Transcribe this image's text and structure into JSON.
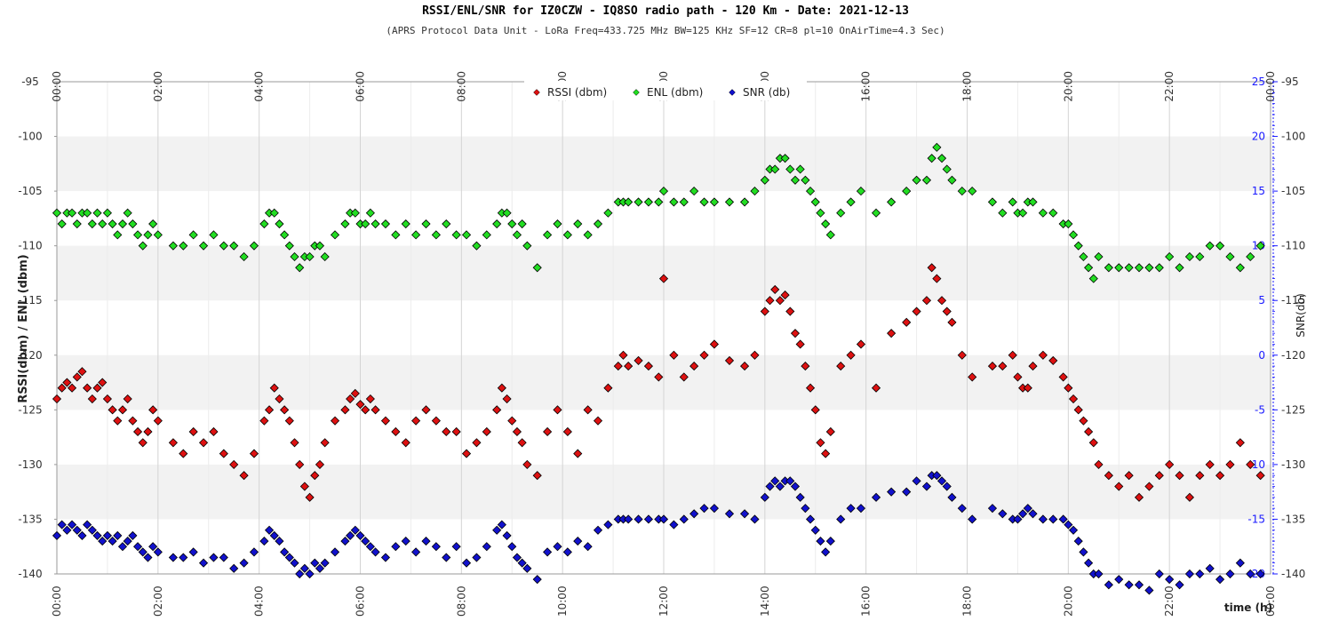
{
  "chart_data": {
    "type": "scatter",
    "title": "RSSI/ENL/SNR for IZ0CZW - IQ8SO radio path - 120 Km - Date: 2021-12-13",
    "subtitle": "(APRS Protocol Data Unit - LoRa Freq=433.725 MHz BW=125 KHz SF=12 CR=8 pl=10 OnAirTime=4.3 Sec)",
    "xlabel": "time (h)",
    "ylabel_left": "RSSI(dbm) / ENL (dbm)",
    "ylabel_right": "SNR(db)",
    "xlim": [
      0,
      24
    ],
    "ylim_left": [
      -140,
      -95
    ],
    "ylim_right": [
      -20,
      25
    ],
    "x_ticks": [
      "00:00",
      "02:00",
      "04:00",
      "06:00",
      "08:00",
      "10:00",
      "12:00",
      "14:00",
      "16:00",
      "18:00",
      "20:00",
      "22:00",
      "00:00"
    ],
    "y_ticks_left": [
      "-95",
      "-100",
      "-105",
      "-110",
      "-115",
      "-120",
      "-125",
      "-130",
      "-135",
      "-140"
    ],
    "y_ticks_right": [
      "25",
      "20",
      "15",
      "10",
      "5",
      "0",
      "-5",
      "-10",
      "-15",
      "-20"
    ],
    "grid": true,
    "legend_position": "top-center",
    "colors": {
      "rssi": "#dd1111",
      "enl": "#22dd22",
      "snr": "#1111cc",
      "right_axis": "#1a1aff",
      "band": "#f2f2f2"
    },
    "series": [
      {
        "name": "RSSI (dbm)",
        "axis": "left",
        "color": "#dd1111",
        "x": [
          0.0,
          0.1,
          0.2,
          0.3,
          0.4,
          0.5,
          0.6,
          0.7,
          0.8,
          0.9,
          1.0,
          1.1,
          1.2,
          1.3,
          1.4,
          1.5,
          1.6,
          1.7,
          1.8,
          1.9,
          2.0,
          2.3,
          2.5,
          2.7,
          2.9,
          3.1,
          3.3,
          3.5,
          3.7,
          3.9,
          4.1,
          4.2,
          4.3,
          4.4,
          4.5,
          4.6,
          4.7,
          4.8,
          4.9,
          5.0,
          5.1,
          5.2,
          5.3,
          5.5,
          5.7,
          5.8,
          5.9,
          6.0,
          6.1,
          6.2,
          6.3,
          6.5,
          6.7,
          6.9,
          7.1,
          7.3,
          7.5,
          7.7,
          7.9,
          8.1,
          8.3,
          8.5,
          8.7,
          8.8,
          8.9,
          9.0,
          9.1,
          9.2,
          9.3,
          9.5,
          9.7,
          9.9,
          10.1,
          10.3,
          10.5,
          10.7,
          10.9,
          11.1,
          11.2,
          11.3,
          11.5,
          11.7,
          11.9,
          12.0,
          12.2,
          12.4,
          12.6,
          12.8,
          13.0,
          13.3,
          13.6,
          13.8,
          14.0,
          14.1,
          14.2,
          14.3,
          14.4,
          14.5,
          14.6,
          14.7,
          14.8,
          14.9,
          15.0,
          15.1,
          15.2,
          15.3,
          15.5,
          15.7,
          15.9,
          16.2,
          16.5,
          16.8,
          17.0,
          17.2,
          17.3,
          17.4,
          17.5,
          17.6,
          17.7,
          17.9,
          18.1,
          18.5,
          18.7,
          18.9,
          19.0,
          19.1,
          19.2,
          19.3,
          19.5,
          19.7,
          19.9,
          20.0,
          20.1,
          20.2,
          20.3,
          20.4,
          20.5,
          20.6,
          20.8,
          21.0,
          21.2,
          21.4,
          21.6,
          21.8,
          22.0,
          22.2,
          22.4,
          22.6,
          22.8,
          23.0,
          23.2,
          23.4,
          23.6,
          23.8
        ],
        "y": [
          -124,
          -123,
          -122.5,
          -123,
          -122,
          -121.5,
          -123,
          -124,
          -123,
          -122.5,
          -124,
          -125,
          -126,
          -125,
          -124,
          -126,
          -127,
          -128,
          -127,
          -125,
          -126,
          -128,
          -129,
          -127,
          -128,
          -127,
          -129,
          -130,
          -131,
          -129,
          -126,
          -125,
          -123,
          -124,
          -125,
          -126,
          -128,
          -130,
          -132,
          -133,
          -131,
          -130,
          -128,
          -126,
          -125,
          -124,
          -123.5,
          -124.5,
          -125,
          -124,
          -125,
          -126,
          -127,
          -128,
          -126,
          -125,
          -126,
          -127,
          -127,
          -129,
          -128,
          -127,
          -125,
          -123,
          -124,
          -126,
          -127,
          -128,
          -130,
          -131,
          -127,
          -125,
          -127,
          -129,
          -125,
          -126,
          -123,
          -121,
          -120,
          -121,
          -120.5,
          -121,
          -122,
          -113,
          -120,
          -122,
          -121,
          -120,
          -119,
          -120.5,
          -121,
          -120,
          -116,
          -115,
          -114,
          -115,
          -114.5,
          -116,
          -118,
          -119,
          -121,
          -123,
          -125,
          -128,
          -129,
          -127,
          -121,
          -120,
          -119,
          -123,
          -118,
          -117,
          -116,
          -115,
          -112,
          -113,
          -115,
          -116,
          -117,
          -120,
          -122,
          -121,
          -121,
          -120,
          -122,
          -123,
          -123,
          -121,
          -120,
          -120.5,
          -122,
          -123,
          -124,
          -125,
          -126,
          -127,
          -128,
          -130,
          -131,
          -132,
          -131,
          -133,
          -132,
          -131,
          -130,
          -131,
          -133,
          -131,
          -130,
          -131,
          -130,
          -128,
          -130,
          -131
        ]
      },
      {
        "name": "ENL (dbm)",
        "axis": "left",
        "color": "#22dd22",
        "x": [
          0.0,
          0.1,
          0.2,
          0.3,
          0.4,
          0.5,
          0.6,
          0.7,
          0.8,
          0.9,
          1.0,
          1.1,
          1.2,
          1.3,
          1.4,
          1.5,
          1.6,
          1.7,
          1.8,
          1.9,
          2.0,
          2.3,
          2.5,
          2.7,
          2.9,
          3.1,
          3.3,
          3.5,
          3.7,
          3.9,
          4.1,
          4.2,
          4.3,
          4.4,
          4.5,
          4.6,
          4.7,
          4.8,
          4.9,
          5.0,
          5.1,
          5.2,
          5.3,
          5.5,
          5.7,
          5.8,
          5.9,
          6.0,
          6.1,
          6.2,
          6.3,
          6.5,
          6.7,
          6.9,
          7.1,
          7.3,
          7.5,
          7.7,
          7.9,
          8.1,
          8.3,
          8.5,
          8.7,
          8.8,
          8.9,
          9.0,
          9.1,
          9.2,
          9.3,
          9.5,
          9.7,
          9.9,
          10.1,
          10.3,
          10.5,
          10.7,
          10.9,
          11.1,
          11.2,
          11.3,
          11.5,
          11.7,
          11.9,
          12.0,
          12.2,
          12.4,
          12.6,
          12.8,
          13.0,
          13.3,
          13.6,
          13.8,
          14.0,
          14.1,
          14.2,
          14.3,
          14.4,
          14.5,
          14.6,
          14.7,
          14.8,
          14.9,
          15.0,
          15.1,
          15.2,
          15.3,
          15.5,
          15.7,
          15.9,
          16.2,
          16.5,
          16.8,
          17.0,
          17.2,
          17.3,
          17.4,
          17.5,
          17.6,
          17.7,
          17.9,
          18.1,
          18.5,
          18.7,
          18.9,
          19.0,
          19.1,
          19.2,
          19.3,
          19.5,
          19.7,
          19.9,
          20.0,
          20.1,
          20.2,
          20.3,
          20.4,
          20.5,
          20.6,
          20.8,
          21.0,
          21.2,
          21.4,
          21.6,
          21.8,
          22.0,
          22.2,
          22.4,
          22.6,
          22.8,
          23.0,
          23.2,
          23.4,
          23.6,
          23.8
        ],
        "y": [
          -107,
          -108,
          -107,
          -107,
          -108,
          -107,
          -107,
          -108,
          -107,
          -108,
          -107,
          -108,
          -109,
          -108,
          -107,
          -108,
          -109,
          -110,
          -109,
          -108,
          -109,
          -110,
          -110,
          -109,
          -110,
          -109,
          -110,
          -110,
          -111,
          -110,
          -108,
          -107,
          -107,
          -108,
          -109,
          -110,
          -111,
          -112,
          -111,
          -111,
          -110,
          -110,
          -111,
          -109,
          -108,
          -107,
          -107,
          -108,
          -108,
          -107,
          -108,
          -108,
          -109,
          -108,
          -109,
          -108,
          -109,
          -108,
          -109,
          -109,
          -110,
          -109,
          -108,
          -107,
          -107,
          -108,
          -109,
          -108,
          -110,
          -112,
          -109,
          -108,
          -109,
          -108,
          -109,
          -108,
          -107,
          -106,
          -106,
          -106,
          -106,
          -106,
          -106,
          -105,
          -106,
          -106,
          -105,
          -106,
          -106,
          -106,
          -106,
          -105,
          -104,
          -103,
          -103,
          -102,
          -102,
          -103,
          -104,
          -103,
          -104,
          -105,
          -106,
          -107,
          -108,
          -109,
          -107,
          -106,
          -105,
          -107,
          -106,
          -105,
          -104,
          -104,
          -102,
          -101,
          -102,
          -103,
          -104,
          -105,
          -105,
          -106,
          -107,
          -106,
          -107,
          -107,
          -106,
          -106,
          -107,
          -107,
          -108,
          -108,
          -109,
          -110,
          -111,
          -112,
          -113,
          -111,
          -112,
          -112,
          -112,
          -112,
          -112,
          -112,
          -111,
          -112,
          -111,
          -111,
          -110,
          -110,
          -111,
          -112,
          -111,
          -110
        ]
      },
      {
        "name": "SNR (db)",
        "axis": "right",
        "color": "#1111cc",
        "x": [
          0.0,
          0.1,
          0.2,
          0.3,
          0.4,
          0.5,
          0.6,
          0.7,
          0.8,
          0.9,
          1.0,
          1.1,
          1.2,
          1.3,
          1.4,
          1.5,
          1.6,
          1.7,
          1.8,
          1.9,
          2.0,
          2.3,
          2.5,
          2.7,
          2.9,
          3.1,
          3.3,
          3.5,
          3.7,
          3.9,
          4.1,
          4.2,
          4.3,
          4.4,
          4.5,
          4.6,
          4.7,
          4.8,
          4.9,
          5.0,
          5.1,
          5.2,
          5.3,
          5.5,
          5.7,
          5.8,
          5.9,
          6.0,
          6.1,
          6.2,
          6.3,
          6.5,
          6.7,
          6.9,
          7.1,
          7.3,
          7.5,
          7.7,
          7.9,
          8.1,
          8.3,
          8.5,
          8.7,
          8.8,
          8.9,
          9.0,
          9.1,
          9.2,
          9.3,
          9.5,
          9.7,
          9.9,
          10.1,
          10.3,
          10.5,
          10.7,
          10.9,
          11.1,
          11.2,
          11.3,
          11.5,
          11.7,
          11.9,
          12.0,
          12.2,
          12.4,
          12.6,
          12.8,
          13.0,
          13.3,
          13.6,
          13.8,
          14.0,
          14.1,
          14.2,
          14.3,
          14.4,
          14.5,
          14.6,
          14.7,
          14.8,
          14.9,
          15.0,
          15.1,
          15.2,
          15.3,
          15.5,
          15.7,
          15.9,
          16.2,
          16.5,
          16.8,
          17.0,
          17.2,
          17.3,
          17.4,
          17.5,
          17.6,
          17.7,
          17.9,
          18.1,
          18.5,
          18.7,
          18.9,
          19.0,
          19.1,
          19.2,
          19.3,
          19.5,
          19.7,
          19.9,
          20.0,
          20.1,
          20.2,
          20.3,
          20.4,
          20.5,
          20.6,
          20.8,
          21.0,
          21.2,
          21.4,
          21.6,
          21.8,
          22.0,
          22.2,
          22.4,
          22.6,
          22.8,
          23.0,
          23.2,
          23.4,
          23.6,
          23.8
        ],
        "y": [
          -16.5,
          -15.5,
          -16,
          -15.5,
          -16,
          -16.5,
          -15.5,
          -16,
          -16.5,
          -17,
          -16.5,
          -17,
          -16.5,
          -17.5,
          -17,
          -16.5,
          -17.5,
          -18,
          -18.5,
          -17.5,
          -18,
          -18.5,
          -18.5,
          -18,
          -19,
          -18.5,
          -18.5,
          -19.5,
          -19,
          -18,
          -17,
          -16,
          -16.5,
          -17,
          -18,
          -18.5,
          -19,
          -20,
          -19.5,
          -20,
          -19,
          -19.5,
          -19,
          -18,
          -17,
          -16.5,
          -16,
          -16.5,
          -17,
          -17.5,
          -18,
          -18.5,
          -17.5,
          -17,
          -18,
          -17,
          -17.5,
          -18.5,
          -17.5,
          -19,
          -18.5,
          -17.5,
          -16,
          -15.5,
          -16.5,
          -17.5,
          -18.5,
          -19,
          -19.5,
          -20.5,
          -18,
          -17.5,
          -18,
          -17,
          -17.5,
          -16,
          -15.5,
          -15,
          -15,
          -15,
          -15,
          -15,
          -15,
          -15,
          -15.5,
          -15,
          -14.5,
          -14,
          -14,
          -14.5,
          -14.5,
          -15,
          -13,
          -12,
          -11.5,
          -12,
          -11.5,
          -11.5,
          -12,
          -13,
          -14,
          -15,
          -16,
          -17,
          -18,
          -17,
          -15,
          -14,
          -14,
          -13,
          -12.5,
          -12.5,
          -11.5,
          -12,
          -11,
          -11,
          -11.5,
          -12,
          -13,
          -14,
          -15,
          -14,
          -14.5,
          -15,
          -15,
          -14.5,
          -14,
          -14.5,
          -15,
          -15,
          -15,
          -15.5,
          -16,
          -17,
          -18,
          -19,
          -20,
          -20,
          -21,
          -20.5,
          -21,
          -21,
          -21.5,
          -20,
          -20.5,
          -21,
          -20,
          -20,
          -19.5,
          -20.5,
          -20,
          -19,
          -20,
          -20
        ]
      }
    ]
  }
}
